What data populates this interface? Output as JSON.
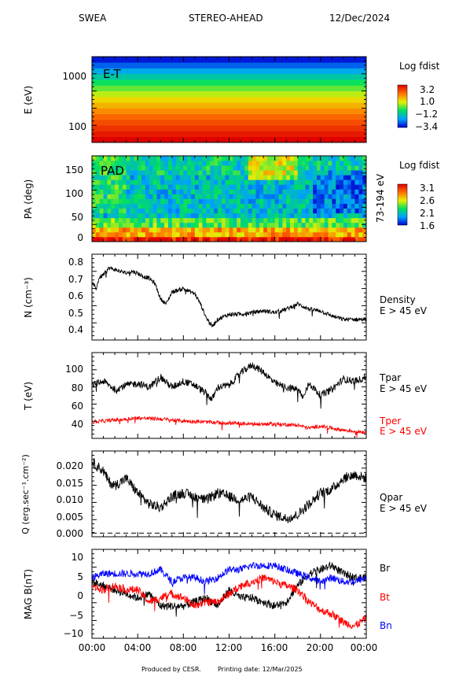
{
  "header": {
    "instrument": "SWEA",
    "mission": "STEREO-AHEAD",
    "date": "12/Dec/2024"
  },
  "footer": {
    "produced_by": "Produced by CESR.",
    "printing_date": "Printing date: 12/Mar/2025"
  },
  "colors": {
    "black": "#000000",
    "red": "#ff0000",
    "blue": "#0000ff"
  },
  "x_axis": {
    "tick_labels": [
      "00:00",
      "04:00",
      "08:00",
      "12:00",
      "16:00",
      "20:00",
      "00:00"
    ]
  },
  "chart_data": [
    {
      "type": "heatmap",
      "ylabel": "E (eV)",
      "inner_label": "E-T",
      "y_scale": "log",
      "y_ticks": [
        "1000",
        "100"
      ],
      "colorbar": {
        "title": "Log fdist",
        "ticks": [
          "3.2",
          "1.0",
          "−1.2",
          "−3.4"
        ],
        "range": [
          -3.4,
          3.2
        ]
      },
      "z_by_energy_band_low_to_high": [
        3.2,
        2.9,
        2.6,
        2.3,
        2.0,
        1.6,
        1.2,
        0.8,
        0.3,
        -0.2,
        -0.7,
        -1.3,
        -1.9,
        -2.6,
        -3.2
      ]
    },
    {
      "type": "heatmap",
      "ylabel": "PA (deg)",
      "inner_label": "PAD",
      "right_label": "73-194 eV",
      "y_ticks": [
        "150",
        "100",
        "50",
        "0"
      ],
      "y_range": [
        0,
        180
      ],
      "colorbar": {
        "title": "Log fdist",
        "ticks": [
          "3.1",
          "2.6",
          "2.1",
          "1.6"
        ],
        "range": [
          1.6,
          3.1
        ]
      }
    },
    {
      "type": "line",
      "ylabel": "N (cm⁻³)",
      "y_ticks": [
        "0.8",
        "0.7",
        "0.6",
        "0.5",
        "0.4"
      ],
      "ylim": [
        0.34,
        0.84
      ],
      "series": [
        {
          "name": "Density",
          "sub": "E > 45 eV",
          "color": "#000000",
          "x": [
            0,
            0.4,
            0.6,
            1,
            1.5,
            2,
            2.5,
            3,
            3.5,
            4,
            4.5,
            5,
            5.5,
            6,
            6.5,
            7,
            8,
            9,
            9.5,
            10,
            10.5,
            11,
            12,
            13,
            14,
            15,
            16,
            17,
            18,
            19,
            20,
            21,
            22,
            23,
            24
          ],
          "y": [
            0.67,
            0.64,
            0.7,
            0.72,
            0.76,
            0.75,
            0.74,
            0.73,
            0.74,
            0.73,
            0.71,
            0.7,
            0.67,
            0.58,
            0.55,
            0.62,
            0.64,
            0.61,
            0.55,
            0.47,
            0.42,
            0.46,
            0.49,
            0.49,
            0.5,
            0.51,
            0.5,
            0.52,
            0.55,
            0.52,
            0.51,
            0.48,
            0.46,
            0.46,
            0.46
          ]
        }
      ]
    },
    {
      "type": "line",
      "ylabel": "T (eV)",
      "y_ticks": [
        "100",
        "80",
        "60",
        "40"
      ],
      "ylim": [
        30,
        114
      ],
      "series": [
        {
          "name": "Tpar",
          "sub": "E > 45 eV",
          "color": "#000000",
          "x": [
            0,
            1,
            2,
            3,
            4,
            5,
            6,
            7,
            8,
            9,
            10,
            10.5,
            11,
            12,
            13,
            14,
            15,
            16,
            17,
            18,
            18.5,
            19,
            20,
            21,
            22,
            23,
            24
          ],
          "y": [
            82,
            86,
            78,
            82,
            84,
            80,
            90,
            80,
            86,
            82,
            74,
            68,
            80,
            82,
            94,
            102,
            95,
            84,
            80,
            78,
            70,
            84,
            72,
            78,
            88,
            86,
            90
          ]
        },
        {
          "name": "Tper",
          "sub": "E > 45 eV",
          "color": "#ff0000",
          "x": [
            0,
            2,
            4,
            6,
            8,
            10,
            12,
            14,
            16,
            18,
            19,
            20,
            22,
            24
          ],
          "y": [
            46,
            48,
            50,
            49,
            47,
            46,
            45,
            44,
            44,
            43,
            40,
            42,
            38,
            36
          ]
        }
      ]
    },
    {
      "type": "line",
      "ylabel": "Q (erg.sec⁻¹.cm⁻²)",
      "y_ticks": [
        "0.020",
        "0.015",
        "0.010",
        "0.005",
        "0.000"
      ],
      "ylim": [
        -0.001,
        0.0225
      ],
      "baseline": 0.0,
      "series": [
        {
          "name": "Qpar",
          "sub": "E > 45 eV",
          "color": "#000000",
          "x": [
            0,
            1,
            1.5,
            2,
            3,
            4,
            5,
            6,
            7,
            8,
            9,
            10,
            11,
            12,
            13,
            14,
            15,
            16,
            17,
            18,
            19,
            20,
            21,
            22,
            23,
            24
          ],
          "y": [
            0.0195,
            0.017,
            0.014,
            0.013,
            0.015,
            0.011,
            0.008,
            0.007,
            0.01,
            0.011,
            0.01,
            0.009,
            0.011,
            0.01,
            0.009,
            0.01,
            0.007,
            0.005,
            0.004,
            0.005,
            0.008,
            0.011,
            0.012,
            0.015,
            0.016,
            0.015
          ]
        }
      ]
    },
    {
      "type": "line",
      "ylabel": "MAG B(nT)",
      "y_ticks": [
        "10",
        "5",
        "0",
        "−5",
        "−10"
      ],
      "ylim": [
        -11,
        11
      ],
      "series": [
        {
          "name": "Br",
          "color": "#000000",
          "x": [
            0,
            1,
            2,
            3,
            4,
            5,
            6,
            7,
            8,
            9,
            10,
            11,
            12,
            13,
            14,
            15,
            16,
            17,
            18,
            19,
            20,
            21,
            22,
            23,
            24
          ],
          "y": [
            3,
            2,
            1,
            0,
            -1,
            0,
            -3,
            -3,
            -3,
            -2,
            -1,
            -3,
            1,
            -1,
            -1,
            -2,
            -3,
            -2,
            2,
            5,
            6,
            7,
            5,
            4,
            4
          ]
        },
        {
          "name": "Bt",
          "color": "#ff0000",
          "x": [
            0,
            1,
            2,
            3,
            4,
            5,
            6,
            7,
            8,
            9,
            10,
            11,
            12,
            13,
            14,
            15,
            16,
            17,
            18,
            19,
            20,
            21,
            22,
            23,
            24
          ],
          "y": [
            2,
            1,
            2,
            1,
            1,
            -2,
            -1,
            0,
            -1,
            -3,
            -2,
            -2,
            0,
            2,
            3,
            4,
            3,
            2,
            1,
            -2,
            -4,
            -5,
            -7,
            -8,
            -6
          ]
        },
        {
          "name": "Bn",
          "color": "#0000ff",
          "x": [
            0,
            1,
            2,
            3,
            4,
            5,
            6,
            7,
            8,
            9,
            10,
            11,
            12,
            13,
            14,
            15,
            16,
            17,
            18,
            19,
            20,
            21,
            22,
            23,
            24
          ],
          "y": [
            4,
            5,
            5,
            5,
            5,
            5,
            6,
            3,
            4,
            4,
            3,
            4,
            6,
            6,
            7,
            7,
            7,
            6,
            5,
            4,
            3,
            4,
            3,
            3,
            4
          ]
        }
      ]
    }
  ]
}
